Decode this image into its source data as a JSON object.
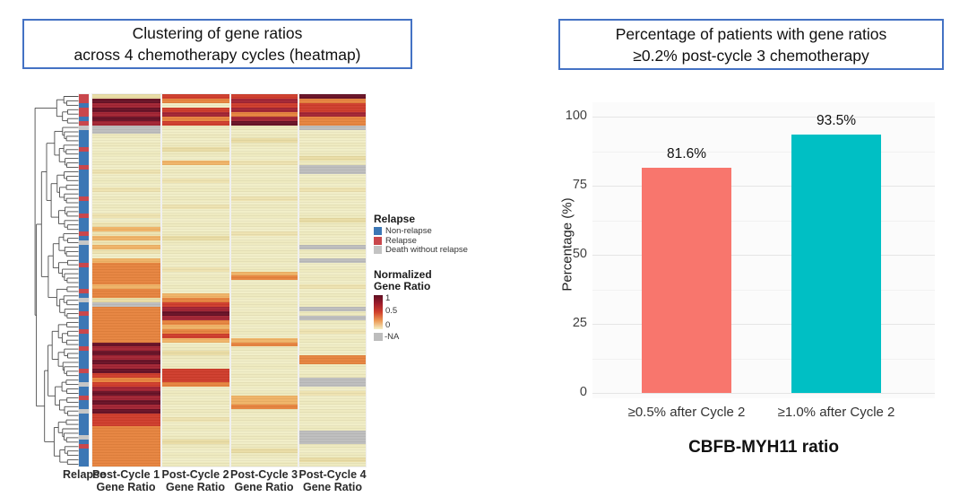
{
  "left_panel": {
    "title_lines": [
      "Clustering of gene ratios",
      "across 4 chemotherapy cycles (heatmap)"
    ],
    "box_border_color": "#4472C4",
    "annotation_label": "Relapse",
    "column_labels": [
      [
        "Post-Cycle 1",
        "Gene Ratio"
      ],
      [
        "Post-Cycle 2",
        "Gene Ratio"
      ],
      [
        "Post-Cycle 3",
        "Gene Ratio"
      ],
      [
        "Post-Cycle 4",
        "Gene Ratio"
      ]
    ],
    "legend_relapse": {
      "title": "Relapse",
      "items": [
        {
          "label": "Non-relapse",
          "color": "#3C77B5"
        },
        {
          "label": "Relapse",
          "color": "#C9474C"
        },
        {
          "label": "Death without relapse",
          "color": "#C3C3C3"
        }
      ]
    },
    "legend_ratio": {
      "title_lines": [
        "Normalized",
        "Gene Ratio"
      ],
      "tick_labels": [
        "1",
        "0.5",
        "0"
      ],
      "na_label": "-NA",
      "na_color": "#BDBDBD",
      "gradient_top_to_bottom": [
        "#5E0F23",
        "#9E1C2C",
        "#D0402C",
        "#EC9A55",
        "#F5F0C6"
      ]
    }
  },
  "right_panel": {
    "title_lines": [
      "Percentage of patients with gene ratios",
      "≥0.2% post-cycle 3 chemotherapy"
    ],
    "box_border_color": "#4472C4"
  },
  "chart_data": [
    {
      "type": "heatmap",
      "title": "Clustering of gene ratios across 4 chemotherapy cycles (heatmap)",
      "columns": [
        "Relapse",
        "Post-Cycle 1 Gene Ratio",
        "Post-Cycle 2 Gene Ratio",
        "Post-Cycle 3 Gene Ratio",
        "Post-Cycle 4 Gene Ratio"
      ],
      "legend_title": "Normalized Gene Ratio",
      "annotation_legend_title": "Relapse",
      "color_scale": {
        "1": "#5E0F23",
        "0.5": "#D0402C",
        "0": "#F5F0C6",
        "NA": "#BDBDBD"
      },
      "annotation_colors": {
        "B": "#3C77B5",
        "R": "#C9474C",
        "G": "#C6C6C6"
      },
      "value_palette": {
        "k": "#671125",
        "m": "#A22433",
        "r": "#CF3C2B",
        "o": "#E6833E",
        "O": "#F0B366",
        "t": "#E9DCA4",
        "c": "#F1EDC6",
        "g": "#BDBDBD"
      },
      "rows_encoding": "each row = [relapse annotation B/R/G][cycle1][cycle2][cycle3][cycle4]; k≈1, m≈0.8, r≈0.6, o≈0.45, O≈0.3, t≈0.15, c≈0, g=NA",
      "rows": [
        "Rtrrk",
        "Rkomo",
        "Bmcrr",
        "Rkrmr",
        "Rmmom",
        "Bkomo",
        "Rmrko",
        "Ggccg",
        "Bgccc",
        "Bcccc",
        "Bcctc",
        "Bcccc",
        "Rctcc",
        "Bcccc",
        "Bccct",
        "BcOtc",
        "Rcccg",
        "Btccg",
        "Bcccc",
        "Bctcc",
        "Bcccc",
        "Btcct",
        "Bcccc",
        "Rcctc",
        "Bcccc",
        "Bctcc",
        "Bcccc",
        "Rtccc",
        "Bccct",
        "Btccc",
        "BOccc",
        "Rtctc",
        "BOtcc",
        "Gtccc",
        "BOccg",
        "Btccc",
        "Bcccc",
        "BOccg",
        "Roccc",
        "Botcc",
        "BocOc",
        "Bococ",
        "Boccc",
        "BOcct",
        "Roccc",
        "BoOcc",
        "Gtocc",
        "Bgrcc",
        "Bomcg",
        "Rokcc",
        "Bomcg",
        "Boocc",
        "BoOcc",
        "Rooct",
        "Borcc",
        "BoOOc",
        "Bkcoc",
        "Rmccc",
        "Bktcc",
        "Bmcco",
        "Bkcco",
        "Bmccc",
        "Rkrcc",
        "Brrcc",
        "Borcg",
        "Grocg",
        "Bmccc",
        "Bkcct",
        "RmcOc",
        "BkcOc",
        "Bmcoc",
        "Gkccc",
        "Brccc",
        "Brtcc",
        "Brccc",
        "Boccc",
        "Boccg",
        "Goccg",
        "Botcg",
        "Roccc",
        "Boctc",
        "Boccc",
        "Bocct",
        "Boccc"
      ]
    },
    {
      "type": "bar",
      "title": "Percentage of patients with gene ratios ≥0.2% post-cycle 3 chemotherapy",
      "categories": [
        "≥0.5% after Cycle 2",
        "≥1.0% after Cycle 2"
      ],
      "values": [
        81.6,
        93.5
      ],
      "value_labels": [
        "81.6%",
        "93.5%"
      ],
      "bar_colors": [
        "#F8766D",
        "#00BFC4"
      ],
      "xlabel": "CBFB-MYH11 ratio",
      "ylabel": "Percentage (%)",
      "yticks": [
        0,
        25,
        50,
        75,
        100
      ],
      "ytick_labels": [
        "0",
        "25",
        "50",
        "75",
        "100"
      ],
      "ylim": [
        0,
        100
      ],
      "grid": "on",
      "grid_major_color": "#E5E5E5",
      "grid_minor_color": "#F1F1F1",
      "legend": "none"
    }
  ]
}
